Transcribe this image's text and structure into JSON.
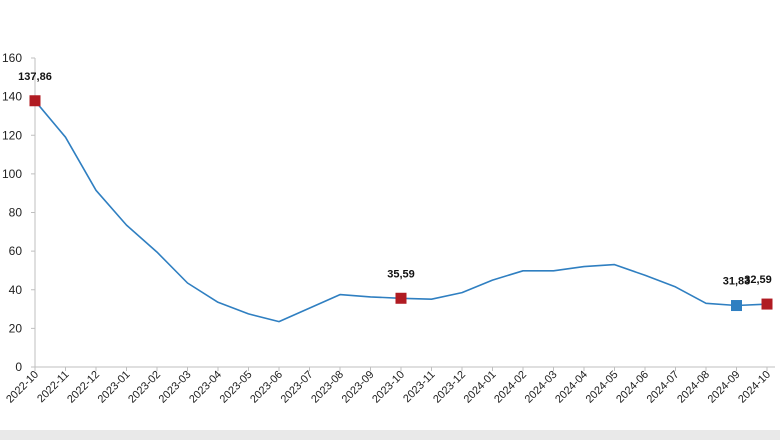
{
  "chart_data": {
    "type": "line",
    "title": "",
    "xlabel": "",
    "ylabel": "",
    "ylim": [
      0,
      160
    ],
    "yticks": [
      0,
      20,
      40,
      60,
      80,
      100,
      120,
      140,
      160
    ],
    "grid": false,
    "legend": "none",
    "categories": [
      "2022-10",
      "2022-11",
      "2022-12",
      "2023-01",
      "2023-02",
      "2023-03",
      "2023-04",
      "2023-05",
      "2023-06",
      "2023-07",
      "2023-08",
      "2023-09",
      "2023-10",
      "2023-11",
      "2023-12",
      "2024-01",
      "2024-02",
      "2024-03",
      "2024-04",
      "2024-05",
      "2024-06",
      "2024-07",
      "2024-08",
      "2024-09",
      "2024-10"
    ],
    "series": [
      {
        "color": "#2f7fc1",
        "values": [
          137.86,
          119,
          91.5,
          73.5,
          59.5,
          43.5,
          33.5,
          27.5,
          23.5,
          30.5,
          37.5,
          36.3,
          35.59,
          35.1,
          38.5,
          45,
          49.8,
          49.8,
          52,
          53,
          47.5,
          41.5,
          33,
          31.83,
          32.59
        ]
      }
    ],
    "highlighted_points": [
      {
        "category": "2022-10",
        "value": 137.86,
        "label": "137,86",
        "color": "#b01b22"
      },
      {
        "category": "2023-10",
        "value": 35.59,
        "label": "35,59",
        "color": "#b01b22"
      },
      {
        "category": "2024-09",
        "value": 31.83,
        "label": "31,83",
        "color": "#2f7fc1"
      },
      {
        "category": "2024-10",
        "value": 32.59,
        "label": "32,59",
        "color": "#b01b22"
      }
    ]
  }
}
